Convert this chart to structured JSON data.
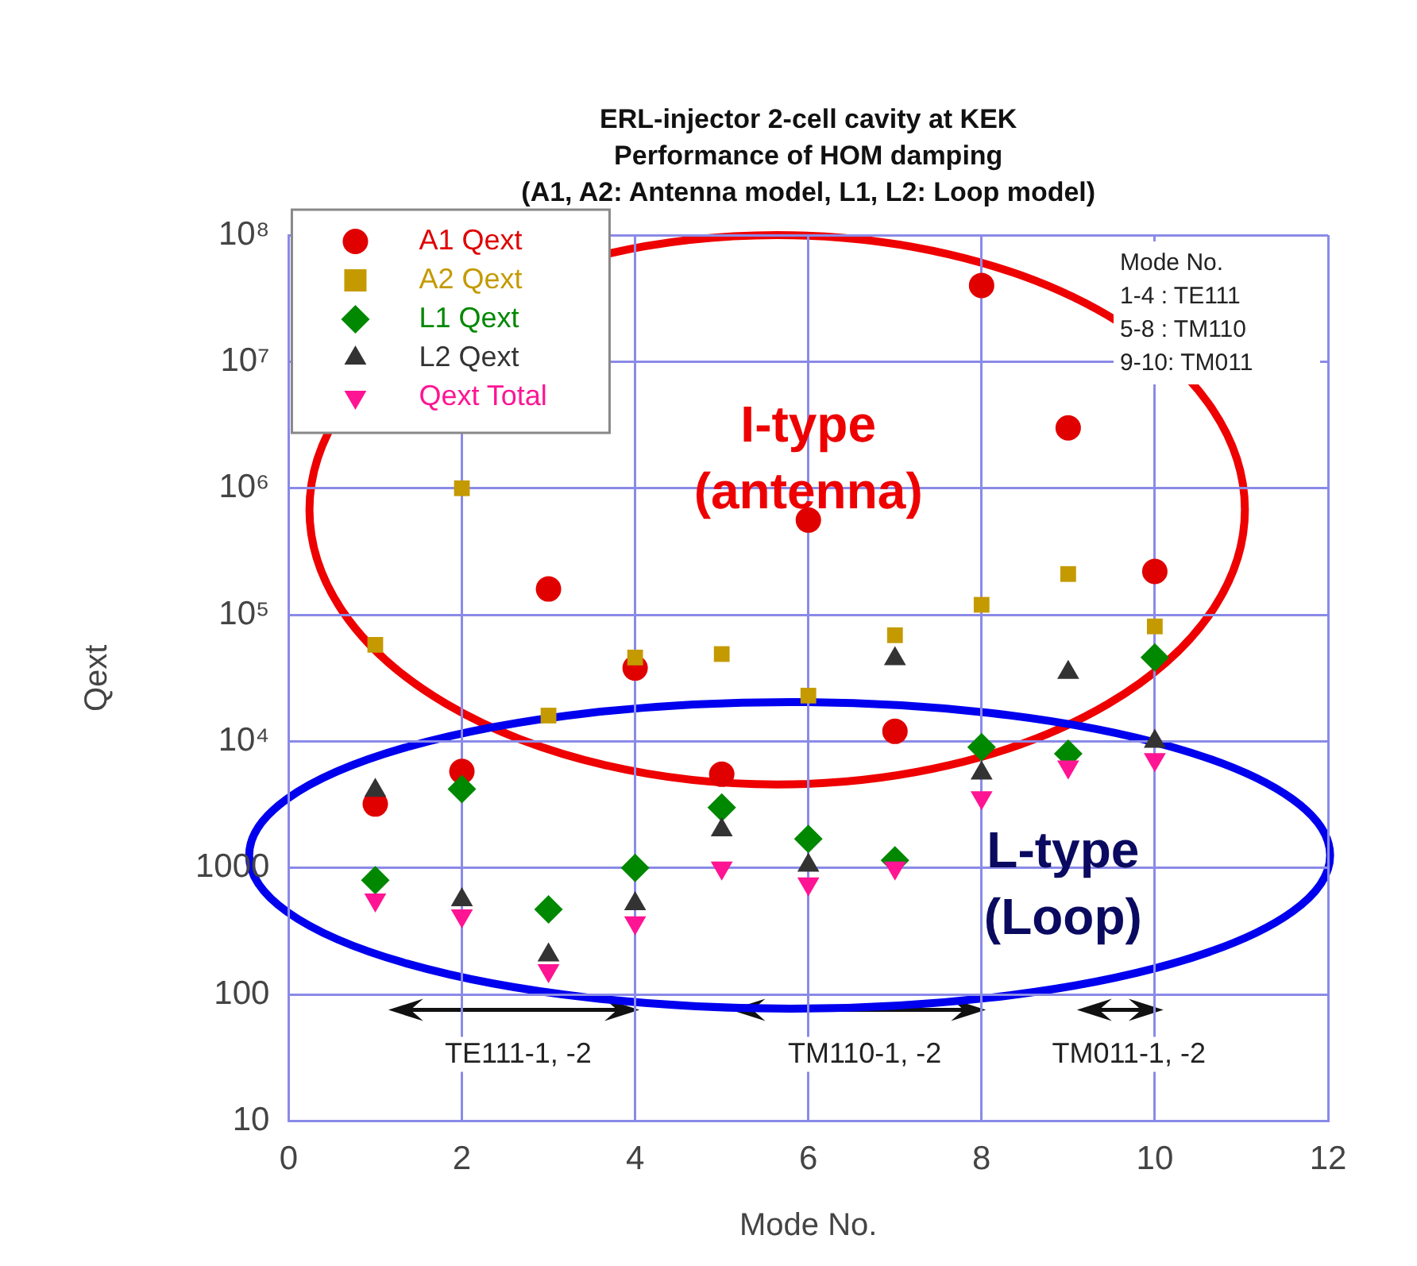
{
  "chart_data": {
    "type": "scatter",
    "title": "ERL-injector 2-cell cavity at KEK",
    "subtitle": "Performance of HOM damping\n(A1, A2: Antenna model, L1, L2: Loop model)",
    "xlabel": "Mode No.",
    "ylabel": "Qext",
    "x": [
      1,
      2,
      3,
      4,
      5,
      6,
      7,
      8,
      9,
      10
    ],
    "series": [
      {
        "name": "A1 Qext",
        "color": "#e00000",
        "marker": "circle",
        "values": [
          3200,
          5800,
          160000,
          38000,
          5500,
          560000,
          12000,
          40000000,
          3000000,
          220000
        ]
      },
      {
        "name": "A2 Qext",
        "color": "#c49a00",
        "marker": "square",
        "values": [
          58000,
          1000000,
          16000,
          46000,
          49000,
          23000,
          69000,
          120000,
          210000,
          81000
        ]
      },
      {
        "name": "L1 Qext",
        "color": "#008800",
        "marker": "diamond",
        "values": [
          800,
          4200,
          470,
          1000,
          3000,
          1700,
          1150,
          9000,
          8000,
          46000
        ]
      },
      {
        "name": "L2 Qext",
        "color": "#333333",
        "marker": "triangle",
        "values": [
          4100,
          560,
          205,
          520,
          2000,
          1050,
          45000,
          5600,
          35000,
          10000
        ]
      },
      {
        "name": "Qext Total",
        "color": "#ff1493",
        "marker": "triangle-down",
        "values": [
          560,
          420,
          155,
          370,
          1000,
          750,
          1000,
          3600,
          6300,
          7200
        ]
      }
    ],
    "log": "y",
    "xlim": [
      0,
      12
    ],
    "xticks": [
      0,
      2,
      4,
      6,
      8,
      10,
      12
    ],
    "ylim": [
      10,
      100000000
    ],
    "yticks": [
      10,
      100,
      1000,
      {
        "value": 10000,
        "label": "10⁴"
      },
      {
        "value": 100000,
        "label": "10⁵"
      },
      {
        "value": 1000000,
        "label": "10⁶"
      },
      {
        "value": 10000000,
        "label": "10⁷"
      },
      {
        "value": 100000000,
        "label": "10⁸"
      }
    ],
    "grid": true,
    "legend": "top left",
    "annotations": [
      "Mode No.\n1-4 : TE111\n5-8 : TM110\n9-10: TM011",
      "TE111-1, -2",
      "TM110-1, -2",
      "TM011-1, -2",
      "I-type\n(antenna)",
      "L-type\n(Loop)"
    ]
  }
}
